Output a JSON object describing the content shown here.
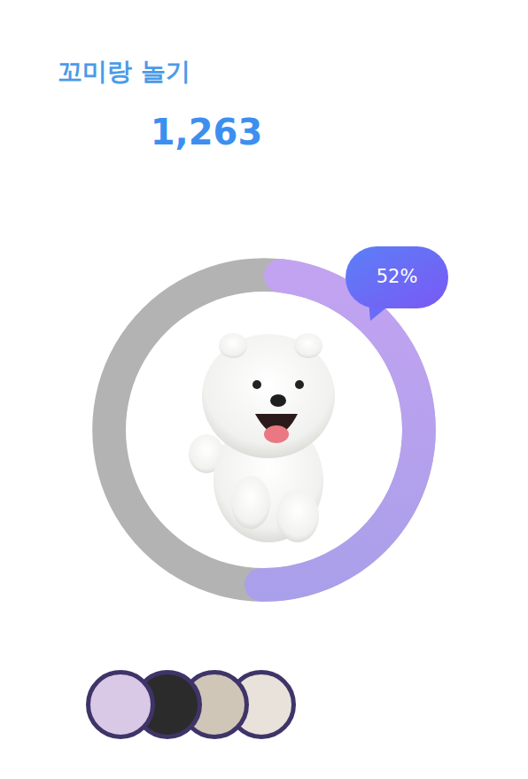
{
  "chart_data": {
    "type": "radial_bar",
    "title": "꼬미랑 놀기",
    "subtitle": "1,263",
    "values": [
      52
    ],
    "value_labels": [
      "52%"
    ],
    "ylim": [
      0,
      100
    ],
    "color": "#a99fea",
    "data_labels": true
  }
}
